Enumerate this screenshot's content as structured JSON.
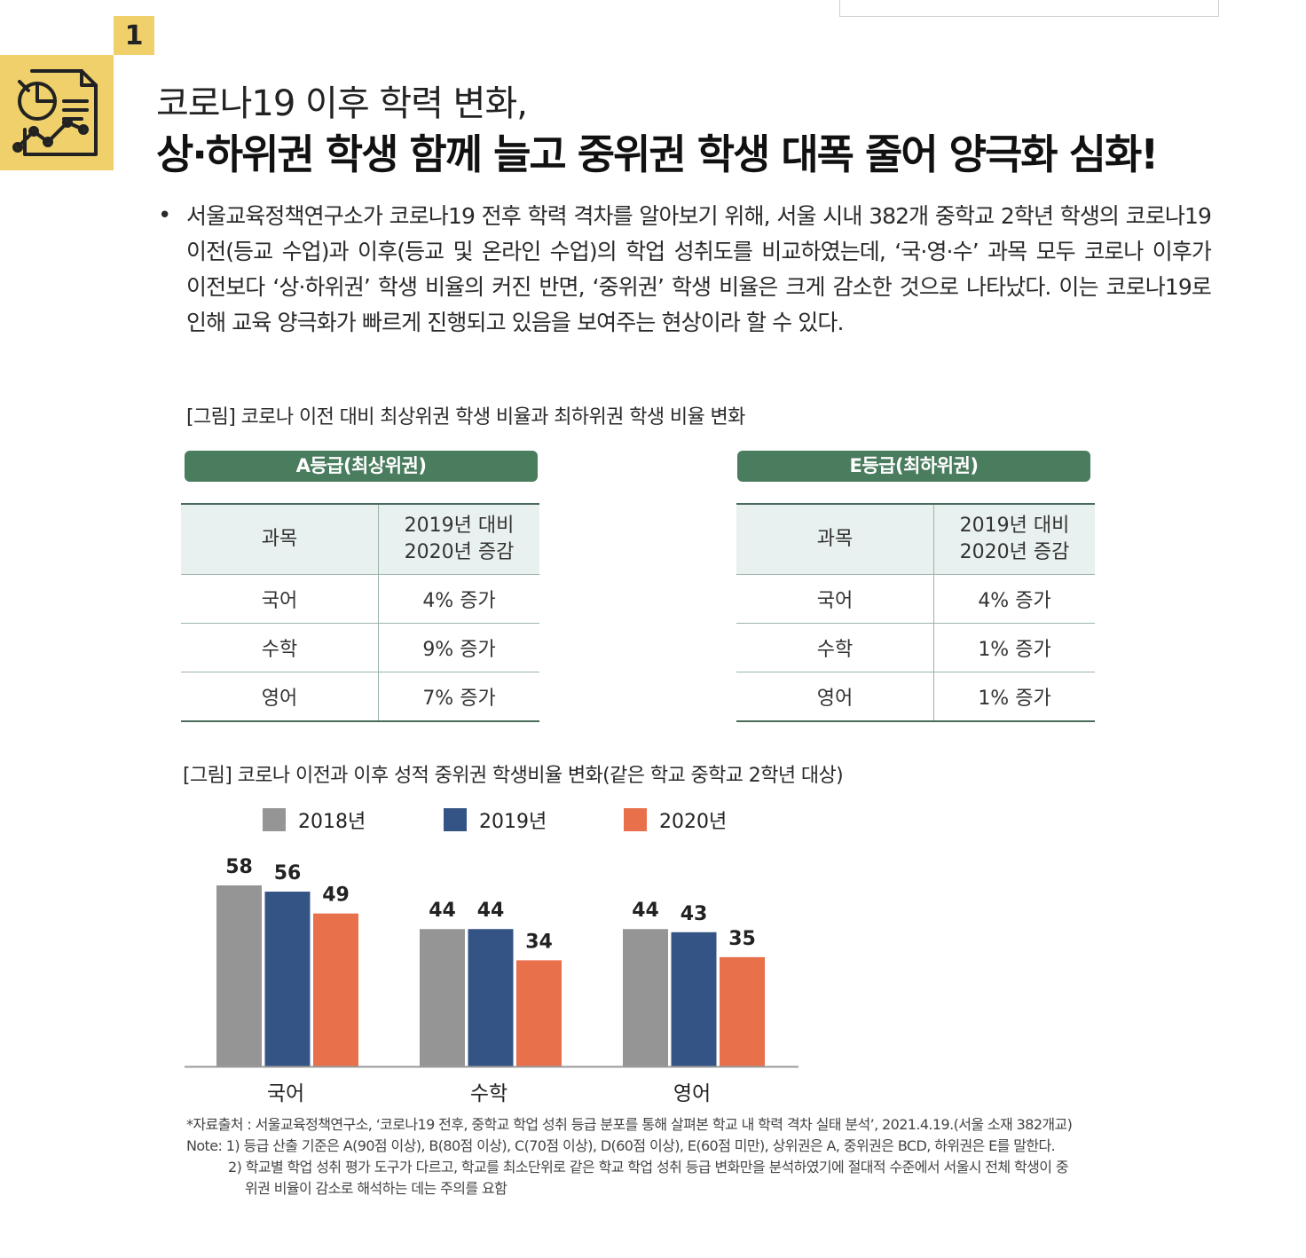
{
  "header": {
    "section_number": "1"
  },
  "title": {
    "line1": "코로나19 이후 학력 변화,",
    "line2": "상·하위권 학생 함께 늘고 중위권 학생 대폭 줄어 양극화 심화!"
  },
  "body": {
    "bullet": "•",
    "paragraph": "서울교육정책연구소가 코로나19 전후 학력 격차를 알아보기 위해, 서울 시내 382개 중학교 2학년 학생의 코로나19 이전(등교 수업)과 이후(등교 및 온라인 수업)의 학업 성취도를 비교하였는데, ‘국·영·수’ 과목 모두 코로나 이후가 이전보다 ‘상·하위권’ 학생 비율의 커진  반면, ‘중위권’ 학생 비율은 크게 감소한 것으로 나타났다. 이는 코로나19로 인해 교육 양극화가 빠르게 진행되고 있음을 보여주는 현상이라 할 수 있다."
  },
  "figure1": {
    "caption": "[그림] 코로나 이전 대비 최상위권 학생 비율과 최하위권 학생 비율 변화",
    "tables": [
      {
        "title": "A등급(최상위권)",
        "col1": "과목",
        "col2_line1": "2019년 대비",
        "col2_line2": "2020년 증감",
        "rows": [
          {
            "subject": "국어",
            "change": "4% 증가"
          },
          {
            "subject": "수학",
            "change": "9% 증가"
          },
          {
            "subject": "영어",
            "change": "7% 증가"
          }
        ]
      },
      {
        "title": "E등급(최하위권)",
        "col1": "과목",
        "col2_line1": "2019년 대비",
        "col2_line2": "2020년 증감",
        "rows": [
          {
            "subject": "국어",
            "change": "4% 증가"
          },
          {
            "subject": "수학",
            "change": "1% 증가"
          },
          {
            "subject": "영어",
            "change": "1% 증가"
          }
        ]
      }
    ]
  },
  "figure2": {
    "caption": "[그림] 코로나 이전과 이후 성적 중위권 학생비율 변화(같은 학교 중학교 2학년 대상)"
  },
  "chart_data": {
    "type": "bar",
    "title": "",
    "categories": [
      "국어",
      "수학",
      "영어"
    ],
    "series": [
      {
        "name": "2018년",
        "values": [
          58,
          44,
          44
        ],
        "color": "#959595"
      },
      {
        "name": "2019년",
        "values": [
          56,
          44,
          43
        ],
        "color": "#345486"
      },
      {
        "name": "2020년",
        "values": [
          49,
          34,
          35
        ],
        "color": "#e8704a"
      }
    ],
    "ylim": [
      0,
      60
    ],
    "grid": false,
    "legend": "top",
    "xlabel": "",
    "ylabel": ""
  },
  "footnotes": {
    "source": "*자료출처 : 서울교육정책연구소, ‘코로나19 전후, 중학교 학업 성취 등급 분포를 통해 살펴본 학교 내 학력 격차 실태 분석’, 2021.4.19.(서울 소재 382개교)",
    "note1": "Note: 1) 등급 산출 기준은 A(90점 이상), B(80점 이상), C(70점 이상), D(60점 이상), E(60점 미만), 상위권은 A, 중위권은 BCD, 하위권은 E를 말한다.",
    "note2_line1": "2) 학교별 학업 성취 평가 도구가 다르고, 학교를 최소단위로 같은 학교 학업 성취 등급 변화만을 분석하였기에 절대적 수준에서 서울시 전체 학생이 중",
    "note2_line2": "위권 비율이 감소로 해석하는 데는 주의를 요함"
  }
}
